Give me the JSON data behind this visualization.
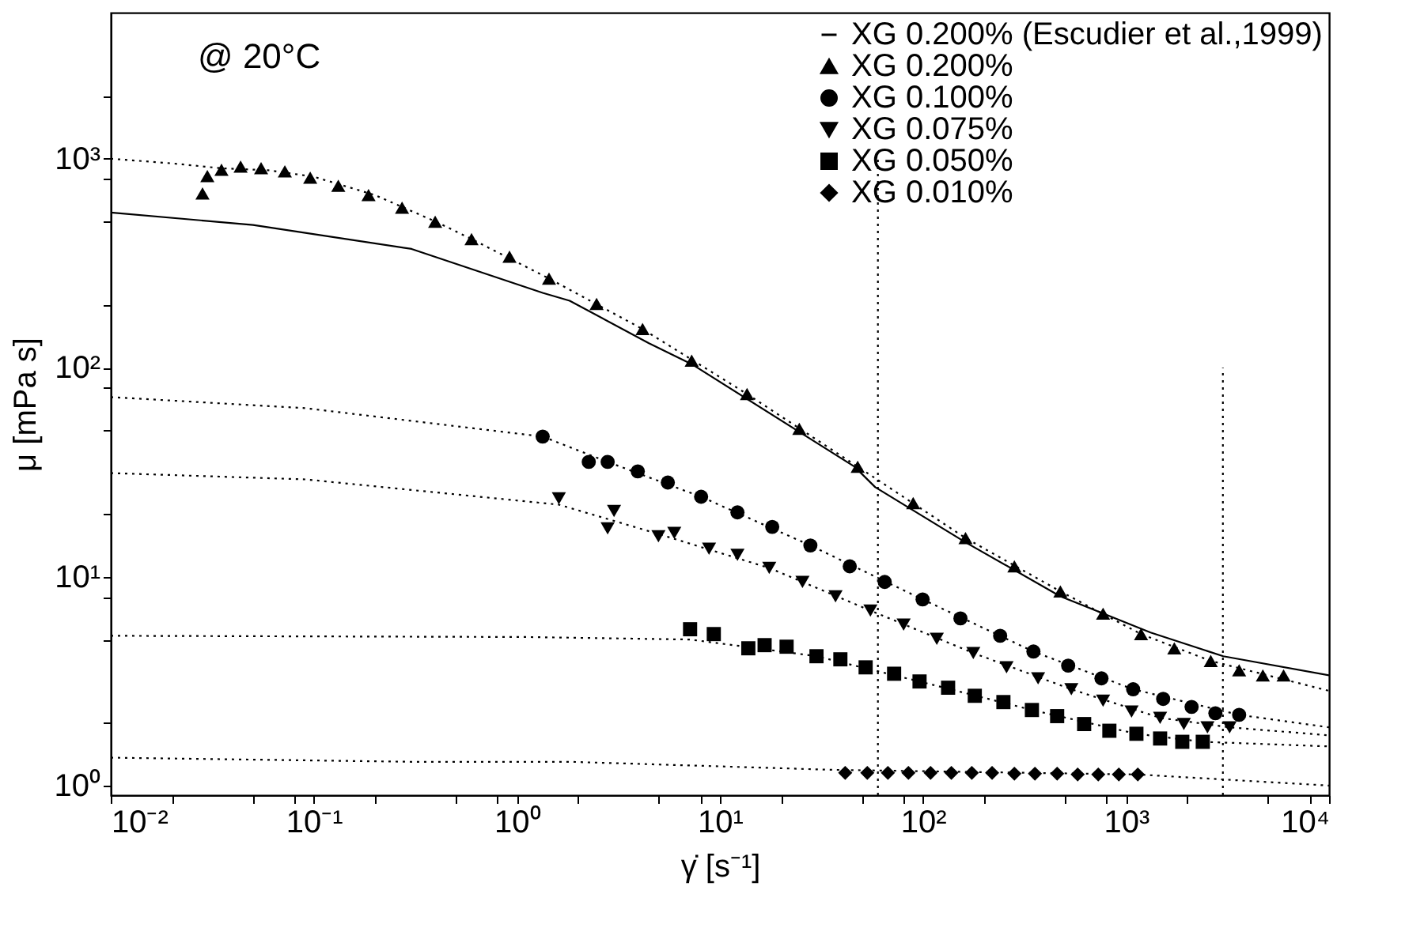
{
  "chart_data": {
    "type": "scatter",
    "xlabel": "γ̇ [s⁻¹]",
    "ylabel": "μ [mPa s]",
    "log": "xy",
    "grid": false,
    "legend": "top right",
    "annotations": [
      "@ 20°C"
    ],
    "xlim": [
      0.01,
      10000
    ],
    "ylim": [
      0.9,
      5000
    ],
    "xticks": [
      {
        "value": 0.01,
        "label": "10⁻²"
      },
      {
        "value": 0.02,
        "label": null
      },
      {
        "value": 0.05,
        "label": null
      },
      {
        "value": 0.08,
        "label": null
      },
      {
        "value": 0.1,
        "label": "10⁻¹"
      },
      {
        "value": 0.2,
        "label": null
      },
      {
        "value": 0.5,
        "label": null
      },
      {
        "value": 0.8,
        "label": null
      },
      {
        "value": 1,
        "label": "10⁰"
      },
      {
        "value": 2,
        "label": null
      },
      {
        "value": 5,
        "label": null
      },
      {
        "value": 8,
        "label": null
      },
      {
        "value": 10,
        "label": "10¹"
      },
      {
        "value": 20,
        "label": null
      },
      {
        "value": 50,
        "label": null
      },
      {
        "value": 80,
        "label": null
      },
      {
        "value": 100,
        "label": "10²"
      },
      {
        "value": 200,
        "label": null
      },
      {
        "value": 500,
        "label": null
      },
      {
        "value": 800,
        "label": null
      },
      {
        "value": 1000,
        "label": "10³"
      },
      {
        "value": 2000,
        "label": null
      },
      {
        "value": 5000,
        "label": null
      },
      {
        "value": 8000,
        "label": null
      },
      {
        "value": 10000,
        "label": "10⁴"
      }
    ],
    "yticks": [
      {
        "value": 1,
        "label": "10⁰"
      },
      {
        "value": 2,
        "label": null
      },
      {
        "value": 5,
        "label": null
      },
      {
        "value": 8,
        "label": null
      },
      {
        "value": 10,
        "label": "10¹"
      },
      {
        "value": 20,
        "label": null
      },
      {
        "value": 50,
        "label": null
      },
      {
        "value": 80,
        "label": null
      },
      {
        "value": 100,
        "label": "10²"
      },
      {
        "value": 200,
        "label": null
      },
      {
        "value": 500,
        "label": null
      },
      {
        "value": 800,
        "label": null
      },
      {
        "value": 1000,
        "label": "10³"
      },
      {
        "value": 2000,
        "label": null
      }
    ],
    "series": [
      {
        "name": "XG 0.200% (Escudier et al.,1999)",
        "type": "line",
        "line_style": "solid",
        "color": "#000000",
        "x": [
          0.01,
          0.0502,
          0.303,
          1.34,
          1.82,
          4.47,
          7.26,
          46,
          58.2,
          162,
          475,
          1321,
          3013,
          10000
        ],
        "values": [
          553,
          482,
          370,
          228,
          209,
          131,
          104,
          33.6,
          26.8,
          14.6,
          8.05,
          5.4,
          4.16,
          3.37
        ]
      },
      {
        "name": "XG 0.200%",
        "marker": "triangle",
        "color": "#000000",
        "x": [
          0.0283,
          0.0299,
          0.0351,
          0.0436,
          0.055,
          0.072,
          0.096,
          0.132,
          0.186,
          0.272,
          0.396,
          0.598,
          0.92,
          1.44,
          2.47,
          4.16,
          7.26,
          13.6,
          24.6,
          47.7,
          89.5,
          162,
          282,
          475,
          771,
          1186,
          1729,
          2614,
          3607,
          4720,
          5970
        ],
        "values": [
          682,
          826,
          885,
          916,
          901,
          870,
          812,
          743,
          670,
          583,
          499,
          412,
          340,
          267,
          202,
          153,
          108,
          74.8,
          51,
          33.6,
          22.5,
          15.3,
          11.2,
          8.5,
          6.65,
          5.31,
          4.54,
          3.95,
          3.56,
          3.37,
          3.37
        ]
      },
      {
        "name": "XG 0.100%",
        "marker": "circle",
        "color": "#000000",
        "x": [
          1.34,
          2.26,
          2.8,
          3.94,
          5.54,
          8.08,
          12.2,
          18.1,
          27.9,
          43.6,
          64.8,
          99.6,
          153,
          240,
          350,
          519,
          757,
          1084,
          1524,
          2104,
          2755,
          3607
        ],
        "values": [
          46.8,
          35.4,
          35.4,
          31.9,
          28.2,
          24.1,
          20.3,
          17.3,
          14.1,
          11.2,
          9.43,
          7.78,
          6.31,
          5.21,
          4.38,
          3.75,
          3.26,
          2.89,
          2.6,
          2.38,
          2.22,
          2.18
        ]
      },
      {
        "name": "XG 0.075%",
        "marker": "triangle-down",
        "color": "#000000",
        "x": [
          1.61,
          3.01,
          2.8,
          4.98,
          5.96,
          8.84,
          12.2,
          17.5,
          25.5,
          37.1,
          55.1,
          80.3,
          117,
          177,
          258,
          369,
          538,
          771,
          1065,
          1472,
          1927,
          2518,
          3238
        ],
        "values": [
          23.7,
          20.6,
          17,
          15.6,
          16.2,
          13.6,
          12.7,
          11,
          9.43,
          8.05,
          6.88,
          5.89,
          5.04,
          4.31,
          3.68,
          3.26,
          2.89,
          2.55,
          2.26,
          2.11,
          1.97,
          1.9,
          1.9
        ]
      },
      {
        "name": "XG 0.050%",
        "marker": "square",
        "color": "#000000",
        "x": [
          7.13,
          9.33,
          13.8,
          16.6,
          21.3,
          29.9,
          39.2,
          52.2,
          72.1,
          96.2,
          133,
          180,
          249,
          344,
          458,
          622,
          828,
          1125,
          1472,
          1893,
          2388
        ],
        "values": [
          5.6,
          5.31,
          4.54,
          4.7,
          4.62,
          4.16,
          4.02,
          3.68,
          3.43,
          3.15,
          2.94,
          2.69,
          2.51,
          2.3,
          2.15,
          1.97,
          1.83,
          1.77,
          1.68,
          1.62,
          1.62
        ]
      },
      {
        "name": "XG 0.010%",
        "marker": "diamond",
        "color": "#000000",
        "x": [
          41.4,
          53.2,
          67.2,
          84.8,
          109,
          138,
          174,
          219,
          282,
          356,
          458,
          578,
          730,
          922,
          1143
        ],
        "values": [
          1.15,
          1.15,
          1.15,
          1.15,
          1.15,
          1.15,
          1.15,
          1.15,
          1.14,
          1.14,
          1.14,
          1.13,
          1.13,
          1.13,
          1.13
        ]
      },
      {
        "type": "line",
        "line_style": "dotted",
        "color": "#000000",
        "x": [
          0.01,
          0.02,
          0.035,
          0.06,
          0.1,
          0.2,
          0.4,
          0.6,
          1.44,
          4.16,
          13.6,
          47.7,
          162,
          475,
          1186,
          2614,
          10000
        ],
        "values": [
          1000,
          950,
          900,
          880,
          820,
          670,
          499,
          412,
          267,
          153,
          74.8,
          33.6,
          15.3,
          8.5,
          5.31,
          3.95,
          2.84
        ]
      },
      {
        "type": "line",
        "line_style": "dotted",
        "color": "#000000",
        "x": [
          0.01,
          0.091,
          1.34,
          2.8,
          8.08,
          27.9,
          99.6,
          350,
          1084,
          3607,
          10000
        ],
        "values": [
          72.3,
          64,
          46.8,
          35.4,
          24.1,
          14.1,
          7.78,
          4.38,
          2.89,
          2.18,
          1.9
        ]
      },
      {
        "type": "line",
        "line_style": "dotted",
        "color": "#000000",
        "x": [
          0.01,
          0.091,
          1.61,
          4.98,
          17.5,
          55.1,
          177,
          538,
          1472,
          3238,
          10000
        ],
        "values": [
          31.3,
          29.2,
          22.1,
          16,
          11,
          6.88,
          4.31,
          2.89,
          2.11,
          1.9,
          1.74
        ]
      },
      {
        "type": "line",
        "line_style": "dotted",
        "color": "#000000",
        "x": [
          0.01,
          1.12,
          7.13,
          13.8,
          29.9,
          96.2,
          344,
          1125,
          2388,
          10000
        ],
        "values": [
          5.21,
          5.14,
          5,
          4.6,
          4.16,
          3.15,
          2.3,
          1.77,
          1.62,
          1.54
        ]
      },
      {
        "type": "line",
        "line_style": "dotted",
        "color": "#000000",
        "x": [
          0.01,
          0.3,
          1.82,
          35.8,
          1143,
          10000
        ],
        "values": [
          1.36,
          1.3,
          1.3,
          1.19,
          1.13,
          1
        ]
      },
      {
        "type": "line",
        "line_style": "dotted",
        "color": "#000000",
        "x": [
          60,
          60
        ],
        "values": [
          0.9,
          1000
        ]
      },
      {
        "type": "line",
        "line_style": "dotted",
        "color": "#000000",
        "x": [
          3000,
          3000
        ],
        "values": [
          0.9,
          100
        ]
      }
    ]
  }
}
